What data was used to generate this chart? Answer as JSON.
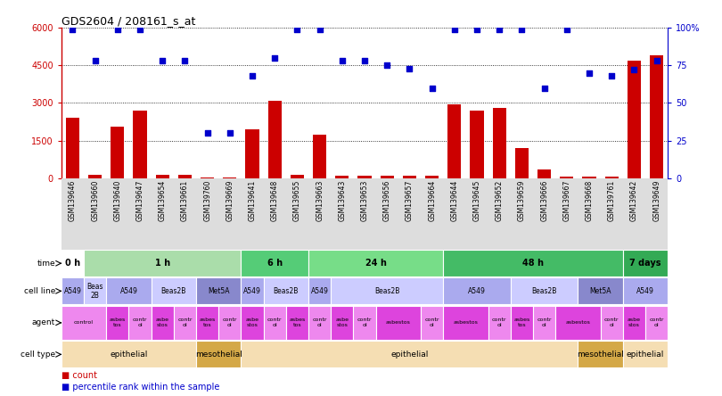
{
  "title": "GDS2604 / 208161_s_at",
  "samples": [
    "GSM139646",
    "GSM139660",
    "GSM139640",
    "GSM139647",
    "GSM139654",
    "GSM139661",
    "GSM139760",
    "GSM139669",
    "GSM139641",
    "GSM139648",
    "GSM139655",
    "GSM139663",
    "GSM139643",
    "GSM139653",
    "GSM139656",
    "GSM139657",
    "GSM139664",
    "GSM139644",
    "GSM139645",
    "GSM139652",
    "GSM139659",
    "GSM139666",
    "GSM139667",
    "GSM139668",
    "GSM139761",
    "GSM139642",
    "GSM139649"
  ],
  "counts": [
    2400,
    150,
    2050,
    2700,
    150,
    150,
    30,
    30,
    1950,
    3100,
    150,
    1750,
    100,
    100,
    100,
    100,
    100,
    2950,
    2700,
    2800,
    1200,
    350,
    80,
    80,
    80,
    4700,
    4900
  ],
  "percentile_ranks": [
    99,
    78,
    99,
    99,
    78,
    78,
    30,
    30,
    68,
    80,
    99,
    99,
    78,
    78,
    75,
    73,
    60,
    99,
    99,
    99,
    99,
    60,
    99,
    70,
    68,
    72,
    78
  ],
  "time_groups": [
    {
      "label": "0 h",
      "start": 0,
      "end": 1,
      "color": "#ffffff"
    },
    {
      "label": "1 h",
      "start": 1,
      "end": 8,
      "color": "#aaddaa"
    },
    {
      "label": "6 h",
      "start": 8,
      "end": 11,
      "color": "#55cc77"
    },
    {
      "label": "24 h",
      "start": 11,
      "end": 17,
      "color": "#77dd88"
    },
    {
      "label": "48 h",
      "start": 17,
      "end": 25,
      "color": "#44bb66"
    },
    {
      "label": "7 days",
      "start": 25,
      "end": 27,
      "color": "#33aa55"
    }
  ],
  "cell_line_groups": [
    {
      "label": "A549",
      "start": 0,
      "end": 1,
      "color": "#aaaaee"
    },
    {
      "label": "Beas\n2B",
      "start": 1,
      "end": 2,
      "color": "#ccccff"
    },
    {
      "label": "A549",
      "start": 2,
      "end": 4,
      "color": "#aaaaee"
    },
    {
      "label": "Beas2B",
      "start": 4,
      "end": 6,
      "color": "#ccccff"
    },
    {
      "label": "Met5A",
      "start": 6,
      "end": 8,
      "color": "#8888cc"
    },
    {
      "label": "A549",
      "start": 8,
      "end": 9,
      "color": "#aaaaee"
    },
    {
      "label": "Beas2B",
      "start": 9,
      "end": 11,
      "color": "#ccccff"
    },
    {
      "label": "A549",
      "start": 11,
      "end": 12,
      "color": "#aaaaee"
    },
    {
      "label": "Beas2B",
      "start": 12,
      "end": 17,
      "color": "#ccccff"
    },
    {
      "label": "A549",
      "start": 17,
      "end": 20,
      "color": "#aaaaee"
    },
    {
      "label": "Beas2B",
      "start": 20,
      "end": 23,
      "color": "#ccccff"
    },
    {
      "label": "Met5A",
      "start": 23,
      "end": 25,
      "color": "#8888cc"
    },
    {
      "label": "A549",
      "start": 25,
      "end": 27,
      "color": "#aaaaee"
    }
  ],
  "agent_groups": [
    {
      "label": "control",
      "start": 0,
      "end": 2,
      "color": "#ee88ee"
    },
    {
      "label": "asbes\ntos",
      "start": 2,
      "end": 3,
      "color": "#dd44dd"
    },
    {
      "label": "contr\nol",
      "start": 3,
      "end": 4,
      "color": "#ee88ee"
    },
    {
      "label": "asbe\nstos",
      "start": 4,
      "end": 5,
      "color": "#dd44dd"
    },
    {
      "label": "contr\nol",
      "start": 5,
      "end": 6,
      "color": "#ee88ee"
    },
    {
      "label": "asbes\ntos",
      "start": 6,
      "end": 7,
      "color": "#dd44dd"
    },
    {
      "label": "contr\nol",
      "start": 7,
      "end": 8,
      "color": "#ee88ee"
    },
    {
      "label": "asbe\nstos",
      "start": 8,
      "end": 9,
      "color": "#dd44dd"
    },
    {
      "label": "contr\nol",
      "start": 9,
      "end": 10,
      "color": "#ee88ee"
    },
    {
      "label": "asbes\ntos",
      "start": 10,
      "end": 11,
      "color": "#dd44dd"
    },
    {
      "label": "contr\nol",
      "start": 11,
      "end": 12,
      "color": "#ee88ee"
    },
    {
      "label": "asbe\nstos",
      "start": 12,
      "end": 13,
      "color": "#dd44dd"
    },
    {
      "label": "contr\nol",
      "start": 13,
      "end": 14,
      "color": "#ee88ee"
    },
    {
      "label": "asbestos",
      "start": 14,
      "end": 16,
      "color": "#dd44dd"
    },
    {
      "label": "contr\nol",
      "start": 16,
      "end": 17,
      "color": "#ee88ee"
    },
    {
      "label": "asbestos",
      "start": 17,
      "end": 19,
      "color": "#dd44dd"
    },
    {
      "label": "contr\nol",
      "start": 19,
      "end": 20,
      "color": "#ee88ee"
    },
    {
      "label": "asbes\ntos",
      "start": 20,
      "end": 21,
      "color": "#dd44dd"
    },
    {
      "label": "contr\nol",
      "start": 21,
      "end": 22,
      "color": "#ee88ee"
    },
    {
      "label": "asbestos",
      "start": 22,
      "end": 24,
      "color": "#dd44dd"
    },
    {
      "label": "contr\nol",
      "start": 24,
      "end": 25,
      "color": "#ee88ee"
    },
    {
      "label": "asbe\nstos",
      "start": 25,
      "end": 26,
      "color": "#dd44dd"
    },
    {
      "label": "contr\nol",
      "start": 26,
      "end": 27,
      "color": "#ee88ee"
    }
  ],
  "cell_type_groups": [
    {
      "label": "epithelial",
      "start": 0,
      "end": 6,
      "color": "#f5deb3"
    },
    {
      "label": "mesothelial",
      "start": 6,
      "end": 8,
      "color": "#d4a847"
    },
    {
      "label": "epithelial",
      "start": 8,
      "end": 23,
      "color": "#f5deb3"
    },
    {
      "label": "mesothelial",
      "start": 23,
      "end": 25,
      "color": "#d4a847"
    },
    {
      "label": "epithelial",
      "start": 25,
      "end": 27,
      "color": "#f5deb3"
    }
  ],
  "bar_color": "#cc0000",
  "dot_color": "#0000cc",
  "y_max_count": 6000,
  "y_ticks_count": [
    0,
    1500,
    3000,
    4500,
    6000
  ],
  "y_max_pct": 100,
  "y_ticks_pct": [
    0,
    25,
    50,
    75,
    100
  ],
  "background_color": "#ffffff",
  "tick_label_bg": "#dddddd"
}
